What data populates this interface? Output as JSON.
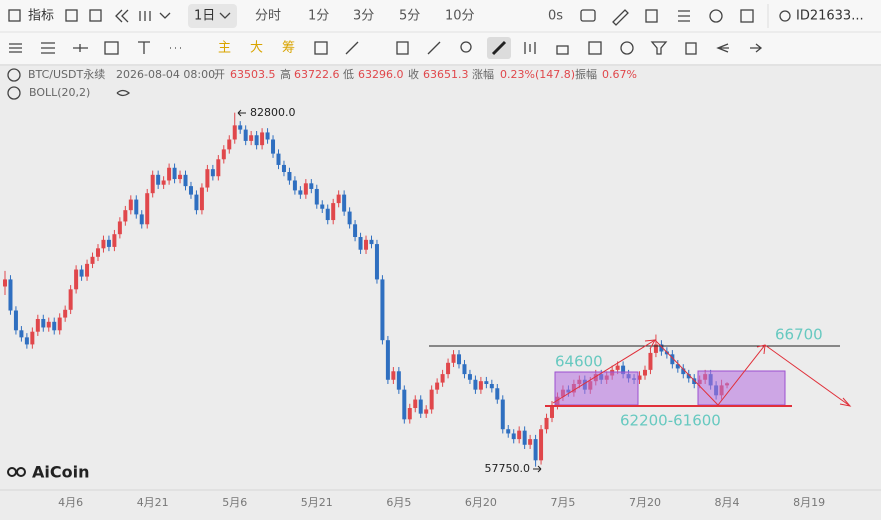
{
  "toolbar": {
    "indicators": "指标",
    "interval": "1日",
    "intervals": [
      "分时",
      "1分",
      "3分",
      "5分",
      "10分"
    ],
    "countdown": "0s",
    "account": "ID21633...",
    "tools": [
      "主",
      "大",
      "筹"
    ]
  },
  "legend": {
    "symbol": "BTC/USDT永续",
    "time": "2026-08-04 08:00",
    "open_label": "开",
    "open": "63503.5",
    "high_label": "高",
    "high": "63722.6",
    "low_label": "低",
    "low": "63296.0",
    "close_label": "收",
    "close": "63651.3",
    "change_label": "涨幅",
    "change": "0.23%(147.8)",
    "amplitude_label": "振幅",
    "amplitude": "0.67%",
    "indicator": "BOLL(20,2)"
  },
  "annotations": [
    "82800.0",
    "57750.0",
    "64600",
    "62200-61600",
    "66700"
  ],
  "logo": "AiCoin",
  "chart_data": {
    "type": "candlestick",
    "up_color": "#e0474b",
    "down_color": "#2f6fc0",
    "ylim": [
      56100,
      86100
    ],
    "categories": [
      null,
      null,
      null,
      null,
      null,
      null,
      null,
      null,
      null,
      null,
      null,
      null,
      "4月6",
      null,
      null,
      null,
      null,
      null,
      null,
      null,
      null,
      null,
      null,
      null,
      null,
      null,
      null,
      "4月21",
      null,
      null,
      null,
      null,
      null,
      null,
      null,
      null,
      null,
      null,
      null,
      null,
      null,
      null,
      "5月6",
      null,
      null,
      null,
      null,
      null,
      null,
      null,
      null,
      null,
      null,
      null,
      null,
      null,
      null,
      "5月21",
      null,
      null,
      null,
      null,
      null,
      null,
      null,
      null,
      null,
      null,
      null,
      null,
      null,
      null,
      "6月5",
      null,
      null,
      null,
      null,
      null,
      null,
      null,
      null,
      null,
      null,
      null,
      null,
      null,
      null,
      "6月20",
      null,
      null,
      null,
      null,
      null,
      null,
      null,
      null,
      null,
      null,
      null,
      null,
      null,
      null,
      "7月5",
      null,
      null,
      null,
      null,
      null,
      null,
      null,
      null,
      null,
      null,
      null,
      null,
      null,
      null,
      "7月20",
      null,
      null,
      null,
      null,
      null,
      null,
      null,
      null,
      null,
      null,
      null,
      null,
      null,
      null,
      "8月4",
      null,
      null,
      null,
      null,
      null,
      null,
      null,
      null,
      null,
      null,
      null,
      null,
      null,
      null,
      "8月19"
    ],
    "ohlc": [
      [
        70500,
        71600,
        69900,
        71000
      ],
      [
        71000,
        71300,
        68500,
        68800
      ],
      [
        68800,
        69100,
        67100,
        67400
      ],
      [
        67400,
        67700,
        66600,
        66900
      ],
      [
        66900,
        67200,
        66100,
        66400
      ],
      [
        66400,
        67600,
        66100,
        67300
      ],
      [
        67300,
        68500,
        67000,
        68200
      ],
      [
        68200,
        68500,
        67300,
        67600
      ],
      [
        67600,
        68300,
        67300,
        68000
      ],
      [
        68000,
        68300,
        67100,
        67400
      ],
      [
        67400,
        68600,
        67100,
        68300
      ],
      [
        68300,
        69150,
        68000,
        68850
      ],
      [
        68850,
        70600,
        68550,
        70300
      ],
      [
        70300,
        72000,
        70000,
        71700
      ],
      [
        71700,
        72000,
        70900,
        71200
      ],
      [
        71200,
        72400,
        70900,
        72100
      ],
      [
        72100,
        72900,
        71800,
        72600
      ],
      [
        72600,
        73500,
        72300,
        73200
      ],
      [
        73200,
        74100,
        72900,
        73800
      ],
      [
        73800,
        74100,
        73000,
        73300
      ],
      [
        73300,
        74500,
        73000,
        74200
      ],
      [
        74200,
        75400,
        73900,
        75100
      ],
      [
        75100,
        76200,
        74800,
        75900
      ],
      [
        75900,
        76950,
        75600,
        76650
      ],
      [
        76650,
        76950,
        75300,
        75600
      ],
      [
        75600,
        75900,
        74600,
        74900
      ],
      [
        74900,
        77400,
        74600,
        77100
      ],
      [
        77100,
        78700,
        76800,
        78400
      ],
      [
        78400,
        78700,
        77400,
        77700
      ],
      [
        77700,
        78300,
        77400,
        78000
      ],
      [
        78000,
        79200,
        77700,
        78900
      ],
      [
        78900,
        79200,
        77800,
        78100
      ],
      [
        78100,
        78700,
        77800,
        78400
      ],
      [
        78400,
        78700,
        77300,
        77600
      ],
      [
        77600,
        77900,
        76700,
        77000
      ],
      [
        77000,
        77300,
        75600,
        75900
      ],
      [
        75900,
        77800,
        75600,
        77500
      ],
      [
        77500,
        79100,
        77200,
        78800
      ],
      [
        78800,
        79100,
        78000,
        78300
      ],
      [
        78300,
        79800,
        78000,
        79500
      ],
      [
        79500,
        80500,
        79200,
        80200
      ],
      [
        80200,
        81200,
        79900,
        80900
      ],
      [
        80900,
        82800,
        80600,
        81900
      ],
      [
        81900,
        82200,
        81300,
        81600
      ],
      [
        81600,
        81900,
        80500,
        80800
      ],
      [
        80800,
        81500,
        80500,
        81200
      ],
      [
        81200,
        81500,
        80200,
        80500
      ],
      [
        80500,
        81700,
        80200,
        81400
      ],
      [
        81400,
        81700,
        80600,
        80900
      ],
      [
        80900,
        81200,
        79600,
        79900
      ],
      [
        79900,
        80200,
        78800,
        79100
      ],
      [
        79100,
        79400,
        78300,
        78600
      ],
      [
        78600,
        78900,
        77700,
        78000
      ],
      [
        78000,
        78300,
        77000,
        77300
      ],
      [
        77300,
        77600,
        76700,
        77000
      ],
      [
        77000,
        78100,
        76700,
        77800
      ],
      [
        77800,
        78100,
        77100,
        77400
      ],
      [
        77400,
        77700,
        76000,
        76300
      ],
      [
        76300,
        76600,
        75700,
        76000
      ],
      [
        76000,
        76300,
        74900,
        75200
      ],
      [
        75200,
        76700,
        74900,
        76400
      ],
      [
        76400,
        77300,
        76100,
        77000
      ],
      [
        77000,
        77300,
        75500,
        75800
      ],
      [
        75800,
        76100,
        74600,
        74900
      ],
      [
        74900,
        75200,
        73700,
        74000
      ],
      [
        74000,
        74300,
        72800,
        73100
      ],
      [
        73100,
        74100,
        72800,
        73800
      ],
      [
        73800,
        74100,
        73200,
        73500
      ],
      [
        73500,
        73800,
        70700,
        71000
      ],
      [
        71000,
        71300,
        66400,
        66700
      ],
      [
        66700,
        67000,
        63600,
        63900
      ],
      [
        63900,
        64800,
        63600,
        64500
      ],
      [
        64500,
        64800,
        62900,
        63200
      ],
      [
        63200,
        63500,
        60800,
        61100
      ],
      [
        61100,
        62200,
        60800,
        61900
      ],
      [
        61900,
        62800,
        61600,
        62500
      ],
      [
        62500,
        62800,
        61200,
        61500
      ],
      [
        61500,
        62100,
        61200,
        61800
      ],
      [
        61800,
        63500,
        61500,
        63200
      ],
      [
        63200,
        64000,
        62900,
        63700
      ],
      [
        63700,
        64600,
        63400,
        64300
      ],
      [
        64300,
        65400,
        64000,
        65100
      ],
      [
        65100,
        66000,
        64800,
        65700
      ],
      [
        65700,
        66000,
        64700,
        65000
      ],
      [
        65000,
        65300,
        64000,
        64300
      ],
      [
        64300,
        64600,
        63600,
        63900
      ],
      [
        63900,
        64200,
        62900,
        63200
      ],
      [
        63200,
        64100,
        62900,
        63800
      ],
      [
        63800,
        64100,
        63300,
        63600
      ],
      [
        63600,
        63900,
        63000,
        63300
      ],
      [
        63300,
        63600,
        62200,
        62500
      ],
      [
        62500,
        62800,
        60100,
        60400
      ],
      [
        60400,
        60700,
        59800,
        60100
      ],
      [
        60100,
        60400,
        59400,
        59700
      ],
      [
        59700,
        60600,
        59400,
        60300
      ],
      [
        60300,
        60600,
        59000,
        59300
      ],
      [
        59300,
        60000,
        59000,
        59700
      ],
      [
        59700,
        60000,
        57750,
        58200
      ],
      [
        58200,
        60700,
        57900,
        60400
      ],
      [
        60400,
        61500,
        60100,
        61200
      ],
      [
        61200,
        62400,
        60900,
        62100
      ],
      [
        62100,
        63000,
        61800,
        62700
      ],
      [
        62700,
        63500,
        62400,
        63200
      ],
      [
        63200,
        63500,
        62700,
        63000
      ],
      [
        63000,
        63900,
        62700,
        63600
      ],
      [
        63600,
        64200,
        63300,
        63900
      ],
      [
        63900,
        64200,
        62900,
        63200
      ],
      [
        63200,
        64100,
        62900,
        63800
      ],
      [
        63800,
        64600,
        63500,
        64300
      ],
      [
        64300,
        64600,
        63600,
        63900
      ],
      [
        63900,
        64500,
        63600,
        64200
      ],
      [
        64200,
        64900,
        63900,
        64600
      ],
      [
        64600,
        65200,
        64300,
        64900
      ],
      [
        64900,
        65200,
        64000,
        64300
      ],
      [
        64300,
        64600,
        63700,
        64000
      ],
      [
        64000,
        64300,
        63600,
        63900
      ],
      [
        63900,
        64500,
        63600,
        64200
      ],
      [
        64200,
        64900,
        63900,
        64600
      ],
      [
        64600,
        66100,
        64300,
        65800
      ],
      [
        65800,
        67100,
        65500,
        66400
      ],
      [
        66400,
        66700,
        65600,
        65900
      ],
      [
        65900,
        66200,
        65400,
        65700
      ],
      [
        65700,
        66000,
        64700,
        65000
      ],
      [
        65000,
        65300,
        64400,
        64700
      ],
      [
        64700,
        65000,
        64000,
        64300
      ],
      [
        64300,
        64600,
        63700,
        64000
      ],
      [
        64000,
        64300,
        63300,
        63600
      ],
      [
        63600,
        64200,
        63300,
        63900
      ],
      [
        63900,
        64600,
        63600,
        64300
      ],
      [
        64300,
        64600,
        63200,
        63500
      ],
      [
        63500,
        63800,
        62500,
        62800
      ],
      [
        62800,
        63900,
        62500,
        63503.5
      ],
      [
        63503.5,
        63722.6,
        63296.0,
        63651.3
      ],
      null,
      null,
      null,
      null,
      null,
      null,
      null,
      null,
      null,
      null,
      null,
      null,
      null,
      null,
      null
    ]
  }
}
